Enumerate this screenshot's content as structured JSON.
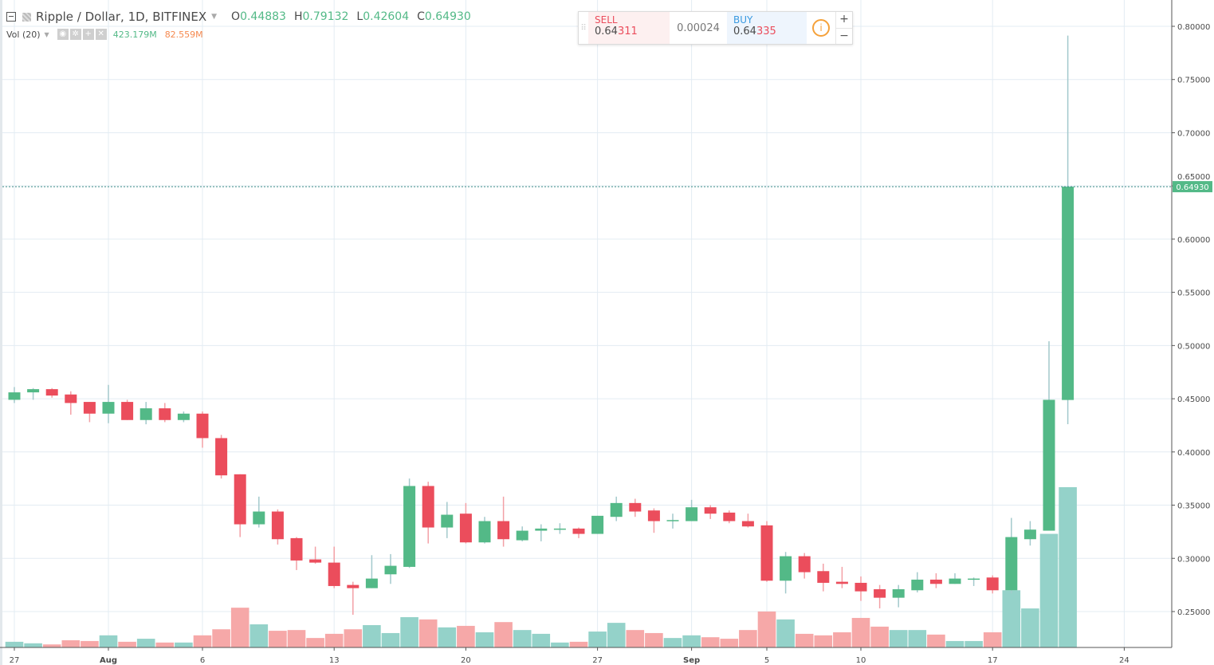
{
  "header": {
    "symbol": "Ripple / Dollar, 1D, BITFINEX",
    "open_label": "O",
    "open": "0.44883",
    "high_label": "H",
    "high": "0.79132",
    "low_label": "L",
    "low": "0.42604",
    "close_label": "C",
    "close": "0.64930"
  },
  "volume_legend": {
    "label": "Vol (20)",
    "volume": "423.179M",
    "ma": "82.559M"
  },
  "trade_panel": {
    "sell_label": "SELL",
    "sell_price_main": "0.64",
    "sell_price_tail": "311",
    "spread": "0.00024",
    "buy_label": "BUY",
    "buy_price_main": "0.64",
    "buy_price_tail": "335",
    "zoom_in": "+",
    "zoom_out": "−"
  },
  "colors": {
    "up": "#53b987",
    "down": "#eb4d5c",
    "vol_up": "#94d2c9",
    "vol_down": "#f6a8a8",
    "grid": "#e3ecf3"
  },
  "chart_data": {
    "type": "candlestick",
    "title": "Ripple / Dollar, 1D, BITFINEX",
    "last_price_label": "0.64930",
    "ylim": [
      0.215,
      0.825
    ],
    "y_ticks": [
      "0.80000",
      "0.75000",
      "0.70000",
      "0.65000",
      "0.60000",
      "0.55000",
      "0.50000",
      "0.45000",
      "0.40000",
      "0.35000",
      "0.30000",
      "0.25000"
    ],
    "x_ticks": [
      {
        "day": 0,
        "label": "27"
      },
      {
        "day": 5,
        "label": "Aug"
      },
      {
        "day": 10,
        "label": "6"
      },
      {
        "day": 17,
        "label": "13"
      },
      {
        "day": 24,
        "label": "20"
      },
      {
        "day": 31,
        "label": "27"
      },
      {
        "day": 36,
        "label": "Sep"
      },
      {
        "day": 40,
        "label": "5"
      },
      {
        "day": 45,
        "label": "10"
      },
      {
        "day": 52,
        "label": "17"
      },
      {
        "day": 59,
        "label": "24"
      }
    ],
    "candles": [
      [
        0.449,
        0.461,
        0.446,
        0.456,
        15
      ],
      [
        0.456,
        0.46,
        0.449,
        0.459,
        11
      ],
      [
        0.459,
        0.46,
        0.451,
        0.453,
        8
      ],
      [
        0.454,
        0.457,
        0.435,
        0.446,
        19
      ],
      [
        0.447,
        0.447,
        0.428,
        0.436,
        17
      ],
      [
        0.436,
        0.463,
        0.427,
        0.447,
        32
      ],
      [
        0.447,
        0.449,
        0.43,
        0.43,
        15
      ],
      [
        0.43,
        0.447,
        0.426,
        0.441,
        23
      ],
      [
        0.441,
        0.446,
        0.428,
        0.43,
        13
      ],
      [
        0.43,
        0.438,
        0.428,
        0.436,
        13
      ],
      [
        0.436,
        0.438,
        0.404,
        0.413,
        32
      ],
      [
        0.413,
        0.416,
        0.375,
        0.378,
        48
      ],
      [
        0.379,
        0.379,
        0.32,
        0.332,
        105
      ],
      [
        0.332,
        0.358,
        0.329,
        0.344,
        61
      ],
      [
        0.344,
        0.346,
        0.313,
        0.318,
        44
      ],
      [
        0.319,
        0.32,
        0.289,
        0.298,
        46
      ],
      [
        0.299,
        0.311,
        0.295,
        0.296,
        25
      ],
      [
        0.296,
        0.311,
        0.272,
        0.274,
        36
      ],
      [
        0.275,
        0.278,
        0.247,
        0.272,
        48
      ],
      [
        0.272,
        0.303,
        0.272,
        0.281,
        59
      ],
      [
        0.285,
        0.304,
        0.276,
        0.293,
        38
      ],
      [
        0.292,
        0.375,
        0.291,
        0.368,
        80
      ],
      [
        0.368,
        0.372,
        0.314,
        0.329,
        74
      ],
      [
        0.329,
        0.353,
        0.319,
        0.341,
        53
      ],
      [
        0.342,
        0.352,
        0.314,
        0.315,
        57
      ],
      [
        0.315,
        0.339,
        0.314,
        0.335,
        40
      ],
      [
        0.335,
        0.358,
        0.311,
        0.318,
        67
      ],
      [
        0.317,
        0.33,
        0.316,
        0.326,
        46
      ],
      [
        0.326,
        0.332,
        0.316,
        0.328,
        36
      ],
      [
        0.327,
        0.333,
        0.323,
        0.328,
        13
      ],
      [
        0.328,
        0.329,
        0.319,
        0.323,
        15
      ],
      [
        0.323,
        0.34,
        0.323,
        0.34,
        42
      ],
      [
        0.339,
        0.358,
        0.335,
        0.352,
        65
      ],
      [
        0.352,
        0.356,
        0.339,
        0.344,
        46
      ],
      [
        0.345,
        0.347,
        0.324,
        0.335,
        38
      ],
      [
        0.335,
        0.342,
        0.328,
        0.336,
        25
      ],
      [
        0.335,
        0.355,
        0.335,
        0.348,
        32
      ],
      [
        0.348,
        0.35,
        0.337,
        0.342,
        27
      ],
      [
        0.343,
        0.345,
        0.333,
        0.335,
        23
      ],
      [
        0.335,
        0.342,
        0.329,
        0.33,
        46
      ],
      [
        0.331,
        0.335,
        0.278,
        0.279,
        95
      ],
      [
        0.279,
        0.306,
        0.267,
        0.302,
        74
      ],
      [
        0.302,
        0.305,
        0.281,
        0.287,
        36
      ],
      [
        0.288,
        0.295,
        0.269,
        0.277,
        32
      ],
      [
        0.278,
        0.292,
        0.272,
        0.276,
        40
      ],
      [
        0.277,
        0.283,
        0.26,
        0.269,
        78
      ],
      [
        0.271,
        0.275,
        0.253,
        0.263,
        55
      ],
      [
        0.263,
        0.275,
        0.254,
        0.271,
        46
      ],
      [
        0.27,
        0.287,
        0.268,
        0.28,
        46
      ],
      [
        0.28,
        0.286,
        0.272,
        0.276,
        34
      ],
      [
        0.276,
        0.286,
        0.276,
        0.281,
        17
      ],
      [
        0.28,
        0.282,
        0.274,
        0.281,
        17
      ],
      [
        0.282,
        0.284,
        0.267,
        0.27,
        40
      ],
      [
        0.27,
        0.338,
        0.267,
        0.32,
        151
      ],
      [
        0.318,
        0.335,
        0.312,
        0.327,
        103
      ],
      [
        0.326,
        0.504,
        0.326,
        0.449,
        300
      ],
      [
        0.44883,
        0.79132,
        0.42604,
        0.6493,
        423.179
      ]
    ],
    "candle_fields": [
      "open",
      "high",
      "low",
      "close",
      "volume_M"
    ]
  }
}
